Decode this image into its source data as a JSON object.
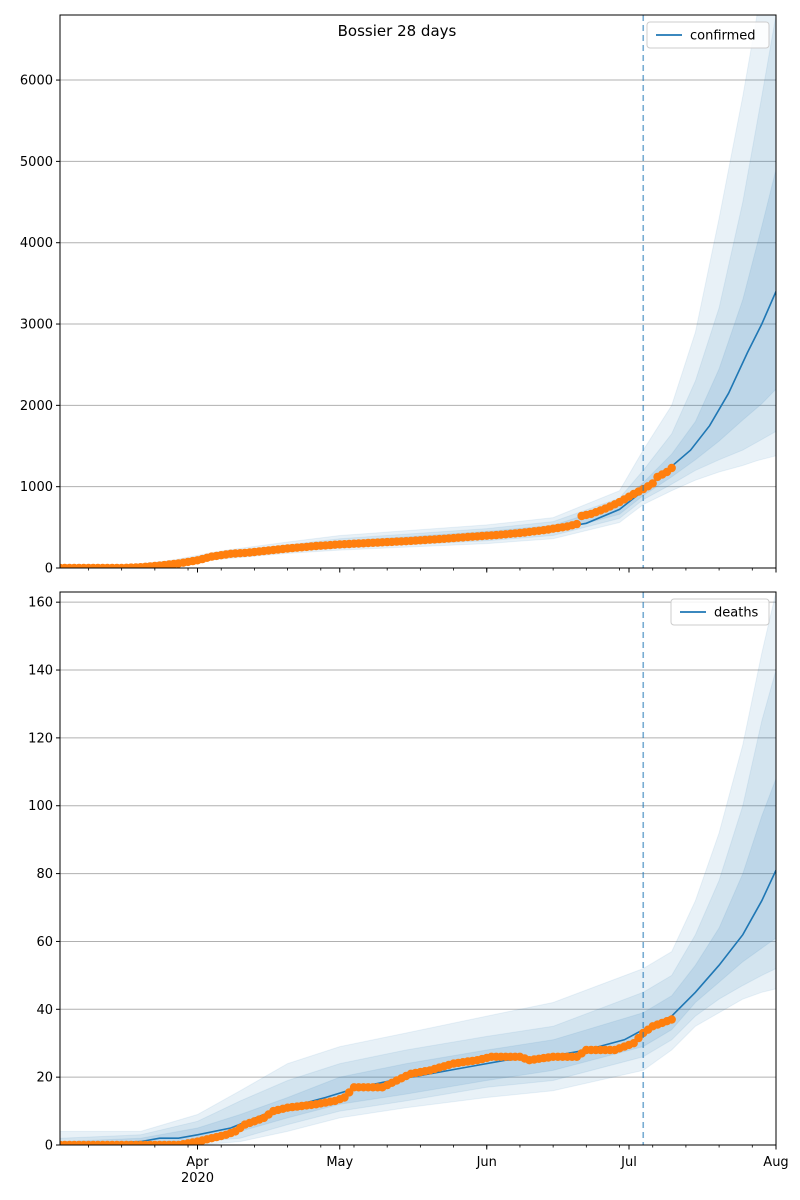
{
  "title": "Bossier 28 days",
  "colors": {
    "model_line": "#1f77b4",
    "observed": "#ff7f0e",
    "band": "#1f77b4",
    "forecast_marker": "#1f77b4",
    "grid": "#b0b0b0"
  },
  "chart_data": [
    {
      "type": "line",
      "title": "Bossier 28 days",
      "xlabel": "",
      "ylabel": "",
      "x_range": [
        "2020-03-03",
        "2020-08-01"
      ],
      "ylim": [
        0,
        6800
      ],
      "y_ticks": [
        0,
        1000,
        2000,
        3000,
        4000,
        5000,
        6000
      ],
      "x_ticks": [
        {
          "date": "2020-04-01",
          "label": "Apr"
        },
        {
          "date": "2020-05-01",
          "label": "May"
        },
        {
          "date": "2020-06-01",
          "label": "Jun"
        },
        {
          "date": "2020-07-01",
          "label": "Jul"
        },
        {
          "date": "2020-08-01",
          "label": "Aug"
        }
      ],
      "year_label": "2020",
      "grid": "horizontal",
      "legend": {
        "placement": "top-right",
        "entries": [
          "confirmed"
        ]
      },
      "forecast_start": "2020-07-04",
      "model": {
        "name": "confirmed",
        "points": [
          [
            "2020-03-03",
            5
          ],
          [
            "2020-03-10",
            6
          ],
          [
            "2020-03-17",
            12
          ],
          [
            "2020-03-22",
            30
          ],
          [
            "2020-03-27",
            65
          ],
          [
            "2020-04-01",
            105
          ],
          [
            "2020-04-06",
            155
          ],
          [
            "2020-04-12",
            200
          ],
          [
            "2020-04-20",
            240
          ],
          [
            "2020-05-01",
            300
          ],
          [
            "2020-05-15",
            345
          ],
          [
            "2020-06-01",
            410
          ],
          [
            "2020-06-15",
            480
          ],
          [
            "2020-06-22",
            550
          ],
          [
            "2020-06-29",
            720
          ],
          [
            "2020-07-04",
            950
          ],
          [
            "2020-07-07",
            1100
          ],
          [
            "2020-07-10",
            1250
          ],
          [
            "2020-07-14",
            1450
          ],
          [
            "2020-07-18",
            1750
          ],
          [
            "2020-07-22",
            2150
          ],
          [
            "2020-07-26",
            2650
          ],
          [
            "2020-07-29",
            3000
          ],
          [
            "2020-08-01",
            3400
          ]
        ]
      },
      "bands": [
        {
          "level": "outer",
          "points": [
            [
              "2020-03-03",
              0,
              20
            ],
            [
              "2020-03-17",
              0,
              30
            ],
            [
              "2020-03-27",
              40,
              100
            ],
            [
              "2020-04-06",
              110,
              210
            ],
            [
              "2020-04-20",
              180,
              320
            ],
            [
              "2020-05-01",
              220,
              400
            ],
            [
              "2020-06-01",
              300,
              530
            ],
            [
              "2020-06-15",
              360,
              620
            ],
            [
              "2020-06-29",
              560,
              950
            ],
            [
              "2020-07-04",
              780,
              1450
            ],
            [
              "2020-07-10",
              950,
              2000
            ],
            [
              "2020-07-15",
              1080,
              2900
            ],
            [
              "2020-07-20",
              1180,
              4300
            ],
            [
              "2020-07-25",
              1260,
              5800
            ],
            [
              "2020-07-28",
              1320,
              6800
            ],
            [
              "2020-08-01",
              1380,
              6800
            ]
          ]
        },
        {
          "level": "middle",
          "points": [
            [
              "2020-03-03",
              0,
              12
            ],
            [
              "2020-03-17",
              2,
              22
            ],
            [
              "2020-03-27",
              50,
              85
            ],
            [
              "2020-04-06",
              125,
              190
            ],
            [
              "2020-04-20",
              200,
              285
            ],
            [
              "2020-05-01",
              245,
              360
            ],
            [
              "2020-06-01",
              335,
              485
            ],
            [
              "2020-06-15",
              400,
              570
            ],
            [
              "2020-06-29",
              610,
              860
            ],
            [
              "2020-07-04",
              840,
              1200
            ],
            [
              "2020-07-10",
              1030,
              1650
            ],
            [
              "2020-07-15",
              1200,
              2300
            ],
            [
              "2020-07-20",
              1330,
              3200
            ],
            [
              "2020-07-25",
              1450,
              4500
            ],
            [
              "2020-07-29",
              1580,
              5800
            ],
            [
              "2020-08-01",
              1680,
              6800
            ]
          ]
        },
        {
          "level": "inner",
          "points": [
            [
              "2020-03-03",
              2,
              8
            ],
            [
              "2020-03-17",
              6,
              18
            ],
            [
              "2020-03-27",
              55,
              75
            ],
            [
              "2020-04-06",
              138,
              172
            ],
            [
              "2020-04-20",
              218,
              262
            ],
            [
              "2020-05-01",
              270,
              330
            ],
            [
              "2020-06-01",
              370,
              450
            ],
            [
              "2020-06-15",
              440,
              525
            ],
            [
              "2020-06-29",
              660,
              790
            ],
            [
              "2020-07-04",
              890,
              1050
            ],
            [
              "2020-07-10",
              1120,
              1400
            ],
            [
              "2020-07-15",
              1330,
              1800
            ],
            [
              "2020-07-20",
              1560,
              2450
            ],
            [
              "2020-07-25",
              1820,
              3300
            ],
            [
              "2020-07-29",
              2020,
              4200
            ],
            [
              "2020-08-01",
              2200,
              4900
            ]
          ]
        }
      ],
      "observed": {
        "name": "observed",
        "points": [
          [
            "2020-03-03",
            0
          ],
          [
            "2020-03-10",
            0
          ],
          [
            "2020-03-16",
            0
          ],
          [
            "2020-03-20",
            10
          ],
          [
            "2020-03-24",
            30
          ],
          [
            "2020-03-28",
            55
          ],
          [
            "2020-04-01",
            95
          ],
          [
            "2020-04-04",
            140
          ],
          [
            "2020-04-08",
            175
          ],
          [
            "2020-04-12",
            190
          ],
          [
            "2020-04-16",
            215
          ],
          [
            "2020-04-20",
            240
          ],
          [
            "2020-04-26",
            270
          ],
          [
            "2020-05-01",
            290
          ],
          [
            "2020-05-08",
            310
          ],
          [
            "2020-05-15",
            330
          ],
          [
            "2020-05-22",
            355
          ],
          [
            "2020-05-29",
            385
          ],
          [
            "2020-06-03",
            405
          ],
          [
            "2020-06-08",
            430
          ],
          [
            "2020-06-13",
            465
          ],
          [
            "2020-06-18",
            510
          ],
          [
            "2020-06-20",
            540
          ],
          [
            "2020-06-21",
            640
          ],
          [
            "2020-06-23",
            665
          ],
          [
            "2020-06-26",
            730
          ],
          [
            "2020-06-29",
            810
          ],
          [
            "2020-07-02",
            910
          ],
          [
            "2020-07-04",
            970
          ],
          [
            "2020-07-06",
            1040
          ],
          [
            "2020-07-07",
            1120
          ],
          [
            "2020-07-09",
            1180
          ],
          [
            "2020-07-10",
            1230
          ]
        ]
      }
    },
    {
      "type": "line",
      "title": "",
      "xlabel": "",
      "ylabel": "",
      "x_range": [
        "2020-03-03",
        "2020-08-01"
      ],
      "ylim": [
        0,
        163
      ],
      "y_ticks": [
        0,
        20,
        40,
        60,
        80,
        100,
        120,
        140,
        160
      ],
      "x_ticks": [
        {
          "date": "2020-04-01",
          "label": "Apr"
        },
        {
          "date": "2020-05-01",
          "label": "May"
        },
        {
          "date": "2020-06-01",
          "label": "Jun"
        },
        {
          "date": "2020-07-01",
          "label": "Jul"
        },
        {
          "date": "2020-08-01",
          "label": "Aug"
        }
      ],
      "year_label": "2020",
      "grid": "horizontal",
      "legend": {
        "placement": "top-right",
        "entries": [
          "deaths"
        ]
      },
      "forecast_start": "2020-07-04",
      "model": {
        "name": "deaths",
        "points": [
          [
            "2020-03-03",
            0
          ],
          [
            "2020-03-20",
            1
          ],
          [
            "2020-03-24",
            2
          ],
          [
            "2020-03-28",
            2
          ],
          [
            "2020-04-01",
            3
          ],
          [
            "2020-04-08",
            5
          ],
          [
            "2020-04-15",
            9
          ],
          [
            "2020-04-20",
            11
          ],
          [
            "2020-04-28",
            14
          ],
          [
            "2020-05-05",
            17
          ],
          [
            "2020-05-12",
            19
          ],
          [
            "2020-05-20",
            21
          ],
          [
            "2020-05-28",
            23
          ],
          [
            "2020-06-05",
            25
          ],
          [
            "2020-06-14",
            26
          ],
          [
            "2020-06-22",
            28
          ],
          [
            "2020-06-30",
            31
          ],
          [
            "2020-07-04",
            34
          ],
          [
            "2020-07-10",
            38
          ],
          [
            "2020-07-15",
            45
          ],
          [
            "2020-07-20",
            53
          ],
          [
            "2020-07-25",
            62
          ],
          [
            "2020-07-29",
            72
          ],
          [
            "2020-08-01",
            81
          ]
        ]
      },
      "bands": [
        {
          "level": "outer",
          "points": [
            [
              "2020-03-03",
              0,
              4
            ],
            [
              "2020-03-20",
              0,
              4
            ],
            [
              "2020-04-01",
              0,
              9
            ],
            [
              "2020-04-10",
              1,
              16
            ],
            [
              "2020-04-20",
              4,
              24
            ],
            [
              "2020-05-01",
              8,
              29
            ],
            [
              "2020-05-15",
              11,
              33
            ],
            [
              "2020-06-01",
              14,
              38
            ],
            [
              "2020-06-15",
              16,
              42
            ],
            [
              "2020-07-04",
              22,
              52
            ],
            [
              "2020-07-10",
              28,
              57
            ],
            [
              "2020-07-15",
              35,
              72
            ],
            [
              "2020-07-20",
              39,
              92
            ],
            [
              "2020-07-25",
              43,
              118
            ],
            [
              "2020-07-29",
              45,
              145
            ],
            [
              "2020-08-01",
              46,
              163
            ]
          ]
        },
        {
          "level": "middle",
          "points": [
            [
              "2020-03-03",
              0,
              2
            ],
            [
              "2020-03-20",
              0,
              3
            ],
            [
              "2020-04-01",
              1,
              7
            ],
            [
              "2020-04-10",
              2,
              13
            ],
            [
              "2020-04-20",
              6,
              19
            ],
            [
              "2020-05-01",
              10,
              24
            ],
            [
              "2020-05-15",
              13,
              28
            ],
            [
              "2020-06-01",
              17,
              32
            ],
            [
              "2020-06-15",
              19,
              35
            ],
            [
              "2020-07-04",
              26,
              45
            ],
            [
              "2020-07-10",
              31,
              50
            ],
            [
              "2020-07-15",
              38,
              62
            ],
            [
              "2020-07-20",
              43,
              78
            ],
            [
              "2020-07-25",
              47,
              100
            ],
            [
              "2020-07-29",
              50,
              125
            ],
            [
              "2020-08-01",
              52,
              140
            ]
          ]
        },
        {
          "level": "inner",
          "points": [
            [
              "2020-03-03",
              0,
              1
            ],
            [
              "2020-03-20",
              0,
              2
            ],
            [
              "2020-04-01",
              2,
              5
            ],
            [
              "2020-04-10",
              4,
              9
            ],
            [
              "2020-04-20",
              8,
              14
            ],
            [
              "2020-05-01",
              12,
              20
            ],
            [
              "2020-05-15",
              15,
              24
            ],
            [
              "2020-06-01",
              19,
              28
            ],
            [
              "2020-06-15",
              22,
              31
            ],
            [
              "2020-07-04",
              29,
              39
            ],
            [
              "2020-07-10",
              34,
              44
            ],
            [
              "2020-07-15",
              42,
              53
            ],
            [
              "2020-07-20",
              48,
              64
            ],
            [
              "2020-07-25",
              54,
              80
            ],
            [
              "2020-07-29",
              58,
              97
            ],
            [
              "2020-08-01",
              61,
              108
            ]
          ]
        }
      ],
      "observed": {
        "name": "observed",
        "points": [
          [
            "2020-03-03",
            0
          ],
          [
            "2020-03-10",
            0
          ],
          [
            "2020-03-20",
            0
          ],
          [
            "2020-03-28",
            0
          ],
          [
            "2020-04-01",
            1
          ],
          [
            "2020-04-04",
            2
          ],
          [
            "2020-04-07",
            3
          ],
          [
            "2020-04-09",
            4
          ],
          [
            "2020-04-11",
            6
          ],
          [
            "2020-04-13",
            7
          ],
          [
            "2020-04-15",
            8
          ],
          [
            "2020-04-17",
            10
          ],
          [
            "2020-04-20",
            11
          ],
          [
            "2020-04-26",
            12
          ],
          [
            "2020-04-30",
            13
          ],
          [
            "2020-05-02",
            14
          ],
          [
            "2020-05-04",
            17
          ],
          [
            "2020-05-10",
            17
          ],
          [
            "2020-05-13",
            19
          ],
          [
            "2020-05-16",
            21
          ],
          [
            "2020-05-20",
            22
          ],
          [
            "2020-05-25",
            24
          ],
          [
            "2020-05-30",
            25
          ],
          [
            "2020-06-02",
            26
          ],
          [
            "2020-06-08",
            26
          ],
          [
            "2020-06-10",
            25
          ],
          [
            "2020-06-15",
            26
          ],
          [
            "2020-06-20",
            26
          ],
          [
            "2020-06-22",
            28
          ],
          [
            "2020-06-28",
            28
          ],
          [
            "2020-07-02",
            30
          ],
          [
            "2020-07-04",
            33
          ],
          [
            "2020-07-06",
            35
          ],
          [
            "2020-07-08",
            36
          ],
          [
            "2020-07-10",
            37
          ]
        ]
      }
    }
  ]
}
